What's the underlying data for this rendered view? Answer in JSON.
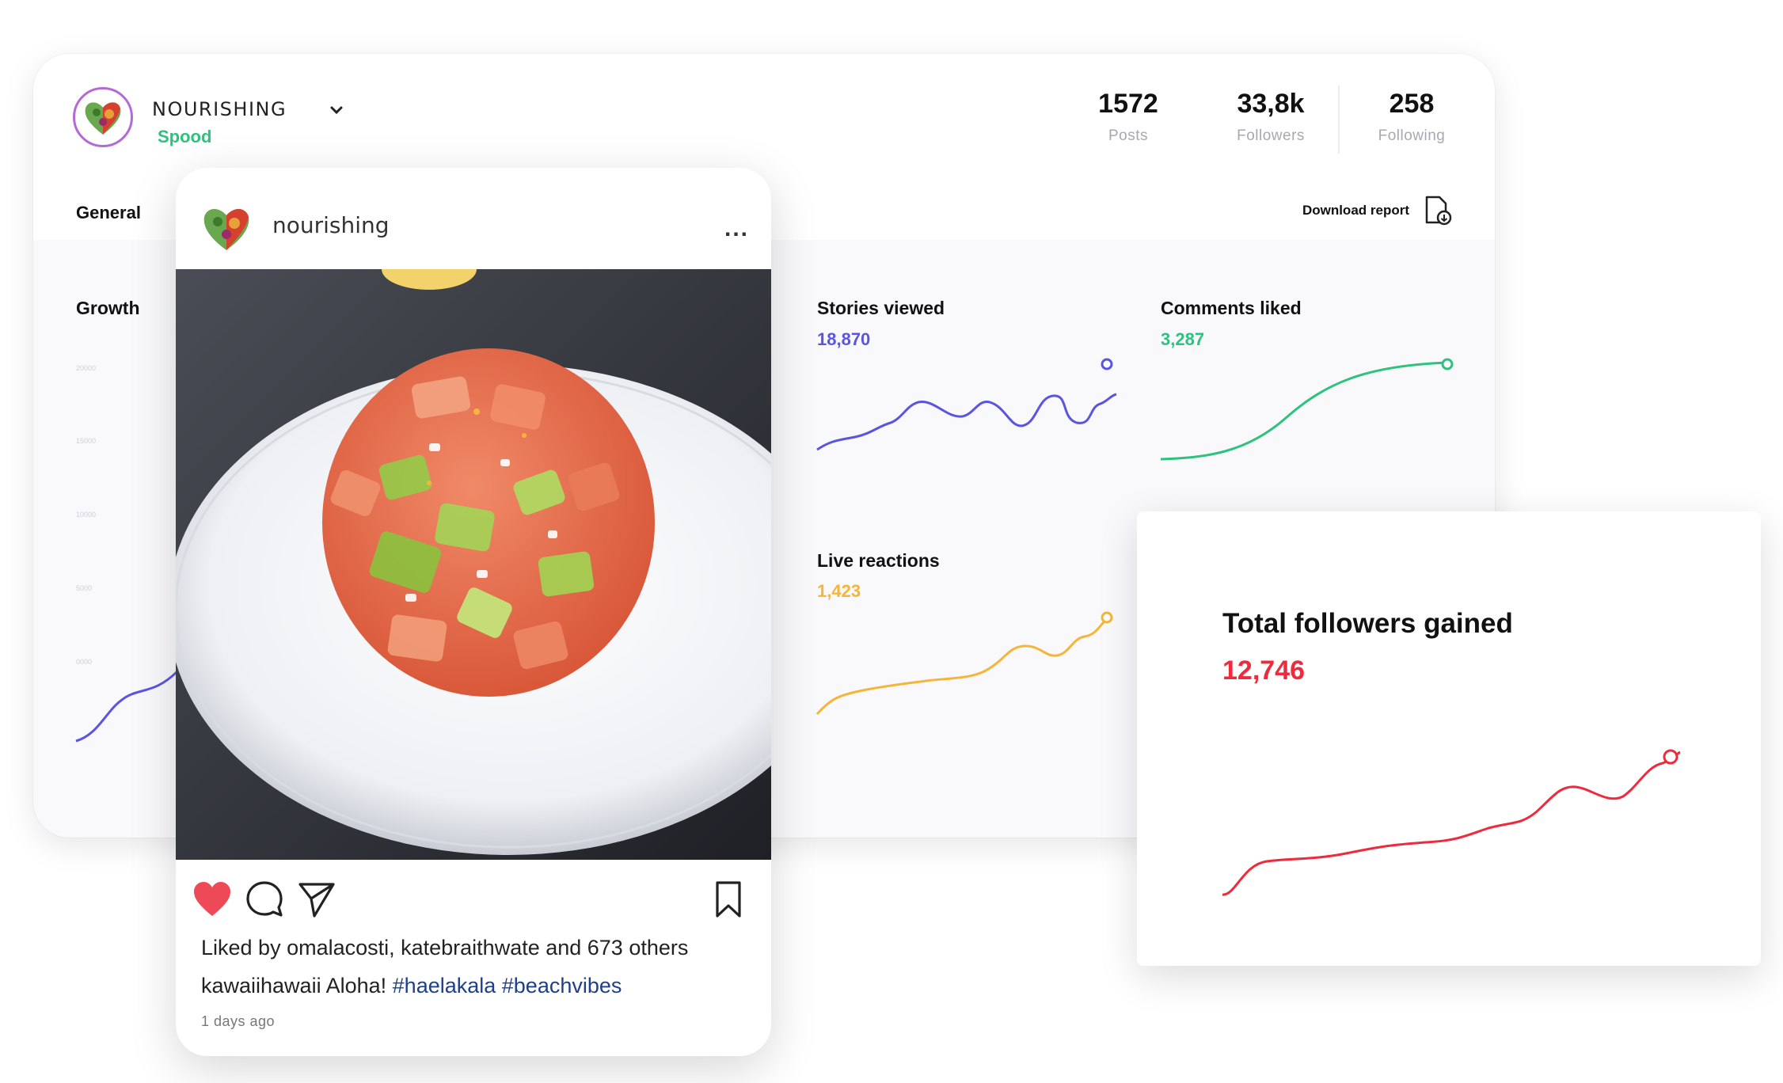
{
  "profile": {
    "name": "NOURISHING",
    "subtitle": "Spood"
  },
  "stats": [
    {
      "value": "1572",
      "label": "Posts"
    },
    {
      "value": "33,8k",
      "label": "Followers"
    },
    {
      "value": "258",
      "label": "Following"
    }
  ],
  "tabs": {
    "general": "General"
  },
  "download_label": "Download report",
  "growth": {
    "title": "Growth",
    "y_ticks": [
      "20000",
      "15000",
      "10000",
      "5000",
      "0000"
    ]
  },
  "metrics": {
    "stories": {
      "title": "Stories viewed",
      "value": "18,870",
      "color": "#5a55e0"
    },
    "comments": {
      "title": "Comments liked",
      "value": "3,287",
      "color": "#2ec27e"
    },
    "reactions": {
      "title": "Live reactions",
      "value": "1,423",
      "color": "#f5b53a"
    }
  },
  "total_followers": {
    "title": "Total followers gained",
    "value": "12,746",
    "color": "#ee2a3c"
  },
  "post": {
    "username": "nourishing",
    "more": "...",
    "liked_by": "Liked by omalacosti, katebraithwate and 673 others",
    "caption_user": "kawaiihawaii",
    "caption_text": " Aloha! ",
    "caption_tags": "#haelakala #beachvibes",
    "time": "1 days ago"
  },
  "icons": {
    "heart": "heart-icon",
    "comment": "comment-icon",
    "share": "send-icon",
    "save": "bookmark-icon",
    "download": "file-download-icon",
    "chevron": "chevron-down-icon"
  }
}
